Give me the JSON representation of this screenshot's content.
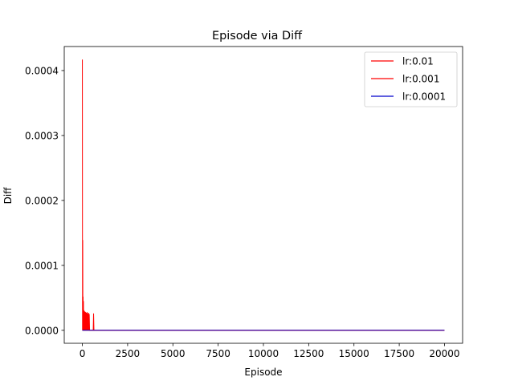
{
  "chart_data": {
    "type": "line",
    "title": "Episode via Diff",
    "xlabel": "Episode",
    "ylabel": "Diff",
    "xlim": [
      -1000,
      21000
    ],
    "ylim": [
      -2e-05,
      0.000437
    ],
    "xticks": [
      0,
      2500,
      5000,
      7500,
      10000,
      12500,
      15000,
      17500,
      20000
    ],
    "xtick_labels": [
      "0",
      "2500",
      "5000",
      "7500",
      "10000",
      "12500",
      "15000",
      "17500",
      "20000"
    ],
    "yticks": [
      0,
      0.0001,
      0.0002,
      0.0003,
      0.0004
    ],
    "ytick_labels": [
      "0.0000",
      "0.0001",
      "0.0002",
      "0.0003",
      "0.0004"
    ],
    "grid": false,
    "legend_position": "top-right",
    "series": [
      {
        "name": "lr:0.01",
        "color": "#ff0000",
        "x": [
          0,
          10,
          20,
          30,
          40,
          50,
          60,
          70,
          80,
          90,
          100,
          120,
          140,
          160,
          180,
          200,
          220,
          240,
          260,
          280,
          300,
          320,
          340,
          360,
          380,
          400,
          500,
          600,
          620,
          640,
          700,
          1000,
          20000
        ],
        "y": [
          0.000417,
          0.0,
          0.000139,
          0.0,
          5.2e-05,
          0.0,
          4.5e-05,
          0.0,
          3.1e-05,
          0.0,
          3e-05,
          0.0,
          2.9e-05,
          0.0,
          2.8e-05,
          0.0,
          2.7e-05,
          0.0,
          2.8e-05,
          0.0,
          2.6e-05,
          0.0,
          2.7e-05,
          0.0,
          2.5e-05,
          0.0,
          0.0,
          0.0,
          2.6e-05,
          0.0,
          0.0,
          0.0,
          0.0
        ]
      },
      {
        "name": "lr:0.001",
        "color": "#ff0000",
        "x": [
          0,
          20000
        ],
        "y": [
          0.0,
          0.0
        ]
      },
      {
        "name": "lr:0.0001",
        "color": "#0000cc",
        "x": [
          0,
          20000
        ],
        "y": [
          0.0,
          0.0
        ]
      }
    ]
  }
}
